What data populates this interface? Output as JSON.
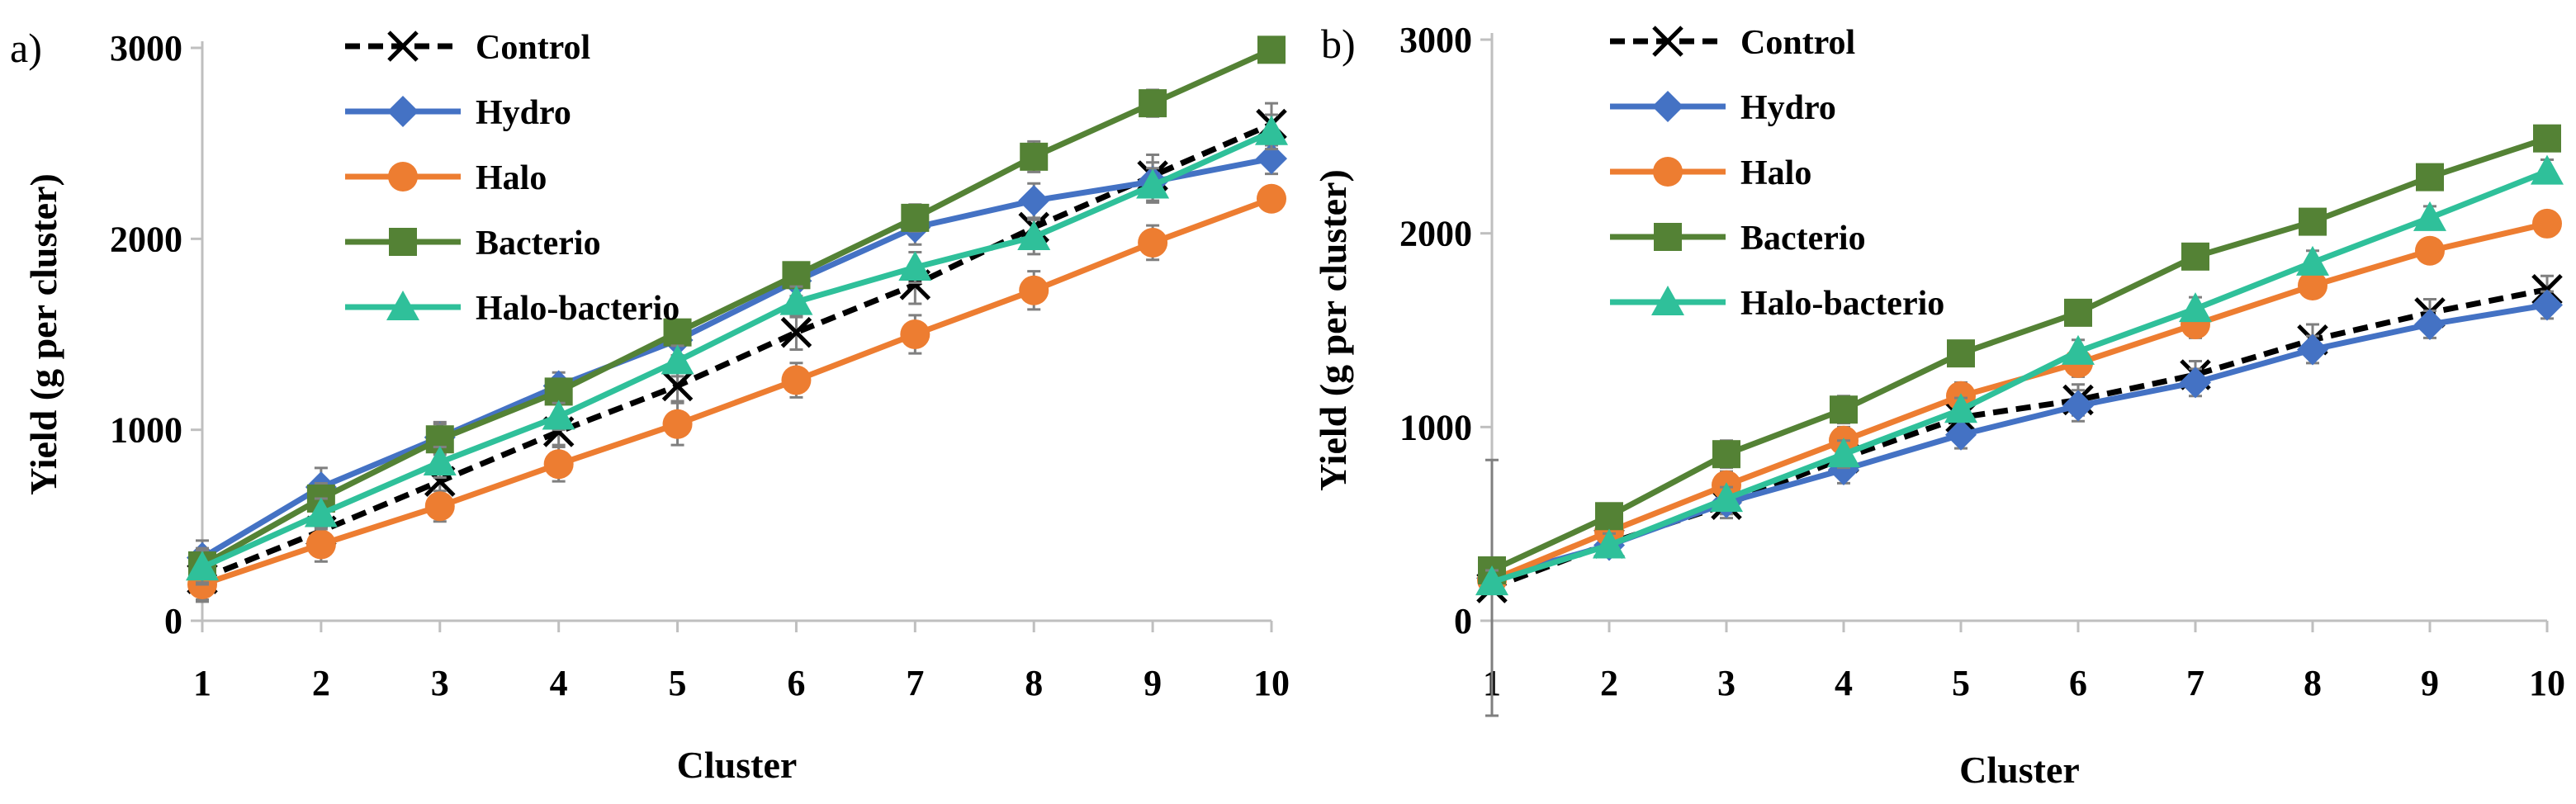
{
  "chart_data": [
    {
      "panel_label": "a)",
      "type": "line",
      "x": [
        1,
        2,
        3,
        4,
        5,
        6,
        7,
        8,
        9,
        10
      ],
      "xlabel": "Cluster",
      "ylabel": "Yield  (g per cluster)",
      "ylim": [
        0,
        3000
      ],
      "yticks": [
        0,
        1000,
        2000,
        3000
      ],
      "legend_position": "top-left",
      "grid": false,
      "series": [
        {
          "name": "Control",
          "color": "#000000",
          "marker": "x",
          "dashed": true,
          "values": [
            220,
            470,
            730,
            990,
            1230,
            1510,
            1760,
            2060,
            2330,
            2600
          ],
          "errors": [
            120,
            90,
            80,
            70,
            80,
            90,
            100,
            100,
            110,
            110
          ]
        },
        {
          "name": "Hydro",
          "color": "#4472C4",
          "marker": "diamond",
          "dashed": false,
          "values": [
            330,
            700,
            960,
            1230,
            1470,
            1780,
            2060,
            2200,
            2300,
            2420
          ],
          "errors": [
            90,
            100,
            80,
            70,
            80,
            80,
            90,
            90,
            100,
            80
          ]
        },
        {
          "name": "Halo",
          "color": "#ED7D31",
          "marker": "circle",
          "dashed": false,
          "values": [
            190,
            400,
            600,
            820,
            1030,
            1260,
            1500,
            1730,
            1980,
            2210
          ],
          "errors": [
            80,
            90,
            80,
            90,
            110,
            90,
            100,
            100,
            90,
            60
          ]
        },
        {
          "name": "Bacterio",
          "color": "#548235",
          "marker": "square",
          "dashed": false,
          "values": [
            290,
            640,
            950,
            1200,
            1510,
            1810,
            2110,
            2430,
            2710,
            2990
          ],
          "errors": [
            90,
            80,
            80,
            60,
            60,
            50,
            70,
            80,
            70,
            40
          ]
        },
        {
          "name": "Halo-bacterio",
          "color": "#2FC09A",
          "marker": "triangle",
          "dashed": false,
          "values": [
            280,
            560,
            830,
            1070,
            1360,
            1670,
            1850,
            2010,
            2280,
            2560
          ],
          "errors": [
            90,
            80,
            80,
            70,
            80,
            80,
            80,
            90,
            90,
            90
          ]
        }
      ]
    },
    {
      "panel_label": "b)",
      "type": "line",
      "x": [
        1,
        2,
        3,
        4,
        5,
        6,
        7,
        8,
        9,
        10
      ],
      "xlabel": "Cluster",
      "ylabel": "Yield  (g per cluster)",
      "ylim": [
        0,
        3000
      ],
      "yticks": [
        0,
        1000,
        2000,
        3000
      ],
      "legend_position": "top-left",
      "grid": false,
      "series": [
        {
          "name": "Control",
          "color": "#000000",
          "marker": "x",
          "dashed": true,
          "values": [
            170,
            400,
            600,
            840,
            1050,
            1140,
            1270,
            1450,
            1590,
            1710
          ],
          "errors": [
            660,
            60,
            70,
            70,
            80,
            80,
            70,
            80,
            70,
            70
          ]
        },
        {
          "name": "Hydro",
          "color": "#4472C4",
          "marker": "diamond",
          "dashed": false,
          "values": [
            220,
            390,
            610,
            780,
            960,
            1110,
            1230,
            1400,
            1530,
            1630
          ],
          "errors": [
            70,
            60,
            60,
            70,
            70,
            80,
            70,
            70,
            70,
            70
          ]
        },
        {
          "name": "Halo",
          "color": "#ED7D31",
          "marker": "circle",
          "dashed": false,
          "values": [
            210,
            460,
            700,
            930,
            1160,
            1330,
            1530,
            1730,
            1910,
            2050
          ],
          "errors": [
            60,
            60,
            70,
            70,
            70,
            70,
            70,
            60,
            60,
            60
          ]
        },
        {
          "name": "Bacterio",
          "color": "#548235",
          "marker": "square",
          "dashed": false,
          "values": [
            260,
            540,
            860,
            1090,
            1380,
            1590,
            1880,
            2060,
            2290,
            2490
          ],
          "errors": [
            60,
            50,
            70,
            70,
            60,
            60,
            50,
            50,
            50,
            50
          ]
        },
        {
          "name": "Halo-bacterio",
          "color": "#2FC09A",
          "marker": "triangle",
          "dashed": false,
          "values": [
            200,
            390,
            630,
            860,
            1090,
            1390,
            1610,
            1850,
            2080,
            2320
          ],
          "errors": [
            60,
            60,
            60,
            70,
            60,
            60,
            60,
            60,
            60,
            60
          ]
        }
      ]
    }
  ]
}
